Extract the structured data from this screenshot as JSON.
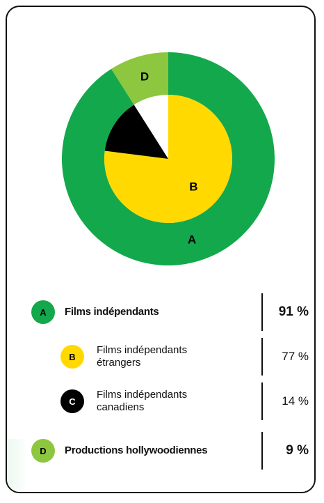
{
  "chart_data": {
    "type": "nested_pie",
    "items": [
      {
        "letter": "A",
        "name": "Films indépendants",
        "value": 91,
        "value_label": "91 %",
        "color": "#13a84b",
        "ring": "outer"
      },
      {
        "letter": "B",
        "name": "Films indépendants étrangers",
        "value": 77,
        "value_label": "77 %",
        "color": "#ffd900",
        "ring": "inner"
      },
      {
        "letter": "C",
        "name": "Films indépendants canadiens",
        "value": 14,
        "value_label": "14 %",
        "color": "#000000",
        "ring": "inner"
      },
      {
        "letter": "D",
        "name": "Productions hollywoodiennes",
        "value": 9,
        "value_label": "9 %",
        "color": "#8dc63f",
        "ring": "outer"
      }
    ]
  }
}
